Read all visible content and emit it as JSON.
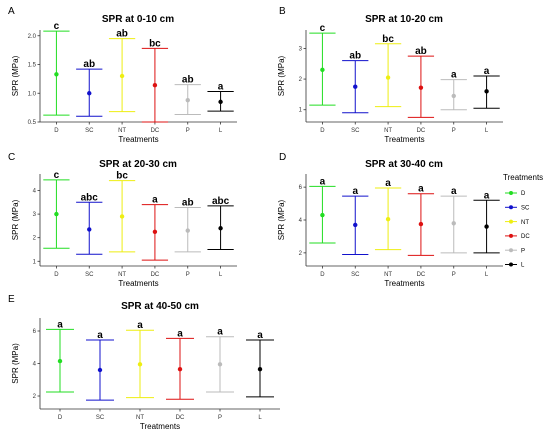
{
  "chart_data": {
    "type": "errorbar",
    "legend": {
      "title": "Treatments",
      "placement": "right",
      "entries": [
        {
          "name": "D",
          "color": "#22dd22"
        },
        {
          "name": "SC",
          "color": "#1111cc"
        },
        {
          "name": "NT",
          "color": "#eeee11"
        },
        {
          "name": "DC",
          "color": "#dd1111"
        },
        {
          "name": "P",
          "color": "#bbbbbb"
        },
        {
          "name": "L",
          "color": "#000000"
        }
      ]
    },
    "panels": [
      {
        "letter": "A",
        "title": "SPR at 0-10 cm",
        "xlabel": "Treatments",
        "ylabel": "SPR (MPa)",
        "ylim": [
          0.5,
          2.1
        ],
        "yticks": [
          "0.5",
          "1.0",
          "1.5",
          "2.0"
        ],
        "categories": [
          "D",
          "SC",
          "NT",
          "DC",
          "P",
          "L"
        ],
        "means": [
          1.33,
          1.0,
          1.3,
          1.14,
          0.88,
          0.85
        ],
        "lower": [
          0.62,
          0.6,
          0.68,
          0.5,
          0.63,
          0.69
        ],
        "upper": [
          2.08,
          1.42,
          1.95,
          1.78,
          1.15,
          1.03
        ],
        "letters": [
          "c",
          "ab",
          "ab",
          "bc",
          "ab",
          "a"
        ]
      },
      {
        "letter": "B",
        "title": "SPR at 10-20 cm",
        "xlabel": "Treatments",
        "ylabel": "SPR (MPa)",
        "ylim": [
          0.6,
          3.6
        ],
        "yticks": [
          "1",
          "2",
          "3"
        ],
        "categories": [
          "D",
          "SC",
          "NT",
          "DC",
          "P",
          "L"
        ],
        "means": [
          2.3,
          1.75,
          2.05,
          1.72,
          1.45,
          1.6
        ],
        "lower": [
          1.15,
          0.9,
          1.1,
          0.75,
          1.0,
          1.05
        ],
        "upper": [
          3.5,
          2.6,
          3.15,
          2.75,
          1.98,
          2.1
        ],
        "letters": [
          "c",
          "ab",
          "bc",
          "ab",
          "a",
          "a"
        ]
      },
      {
        "letter": "C",
        "title": "SPR at 20-30 cm",
        "xlabel": "Treatments",
        "ylabel": "SPR (MPa)",
        "ylim": [
          0.8,
          4.7
        ],
        "yticks": [
          "1",
          "2",
          "3",
          "4"
        ],
        "categories": [
          "D",
          "SC",
          "NT",
          "DC",
          "P",
          "L"
        ],
        "means": [
          3.0,
          2.35,
          2.9,
          2.25,
          2.3,
          2.4
        ],
        "lower": [
          1.55,
          1.3,
          1.4,
          1.05,
          1.4,
          1.5
        ],
        "upper": [
          4.45,
          3.5,
          4.42,
          3.4,
          3.28,
          3.35
        ],
        "letters": [
          "c",
          "abc",
          "bc",
          "a",
          "ab",
          "abc"
        ]
      },
      {
        "letter": "D",
        "title": "SPR at 30-40 cm",
        "xlabel": "Treatments",
        "ylabel": "SPR (MPa)",
        "ylim": [
          1.2,
          6.8
        ],
        "yticks": [
          "2",
          "4",
          "6"
        ],
        "categories": [
          "D",
          "SC",
          "NT",
          "DC",
          "P",
          "L"
        ],
        "means": [
          4.3,
          3.7,
          4.05,
          3.75,
          3.8,
          3.6
        ],
        "lower": [
          2.6,
          1.9,
          2.2,
          1.85,
          2.0,
          2.0
        ],
        "upper": [
          6.05,
          5.45,
          5.95,
          5.6,
          5.45,
          5.2
        ],
        "letters": [
          "a",
          "a",
          "a",
          "a",
          "a",
          "a"
        ]
      },
      {
        "letter": "E",
        "title": "SPR at 40-50 cm",
        "xlabel": "Treatments",
        "ylabel": "SPR (MPa)",
        "ylim": [
          1.2,
          6.8
        ],
        "yticks": [
          "2",
          "4",
          "6"
        ],
        "categories": [
          "D",
          "SC",
          "NT",
          "DC",
          "P",
          "L"
        ],
        "means": [
          4.15,
          3.6,
          3.95,
          3.65,
          3.95,
          3.65
        ],
        "lower": [
          2.25,
          1.75,
          1.9,
          1.8,
          2.25,
          1.95
        ],
        "upper": [
          6.1,
          5.45,
          6.05,
          5.55,
          5.65,
          5.45
        ],
        "letters": [
          "a",
          "a",
          "a",
          "a",
          "a",
          "a"
        ]
      }
    ]
  }
}
